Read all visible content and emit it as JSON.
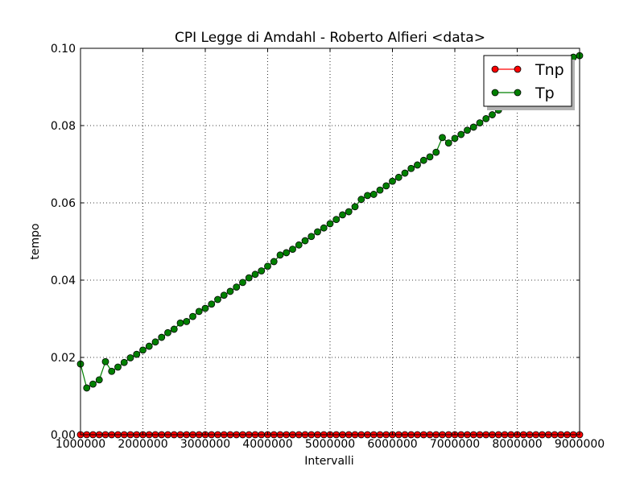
{
  "chart_data": {
    "type": "line",
    "title": "CPI  Legge di Amdahl  -   Roberto Alfieri  <data>",
    "xlabel": "Intervalli",
    "ylabel": "tempo",
    "xlim": [
      1000000,
      9000000
    ],
    "ylim": [
      0.0,
      0.1
    ],
    "x_ticks": [
      1000000,
      2000000,
      3000000,
      4000000,
      5000000,
      6000000,
      7000000,
      8000000,
      9000000
    ],
    "x_tick_labels": [
      "1000000",
      "2000000",
      "3000000",
      "4000000",
      "5000000",
      "6000000",
      "7000000",
      "8000000",
      "9000000"
    ],
    "y_ticks": [
      0.0,
      0.02,
      0.04,
      0.06,
      0.08,
      0.1
    ],
    "y_tick_labels": [
      "0.00",
      "0.02",
      "0.04",
      "0.06",
      "0.08",
      "0.10"
    ],
    "grid": true,
    "legend_position": "top-right",
    "x": [
      1000000,
      1100000,
      1200000,
      1300000,
      1400000,
      1500000,
      1600000,
      1700000,
      1800000,
      1900000,
      2000000,
      2100000,
      2200000,
      2300000,
      2400000,
      2500000,
      2600000,
      2700000,
      2800000,
      2900000,
      3000000,
      3100000,
      3200000,
      3300000,
      3400000,
      3500000,
      3600000,
      3700000,
      3800000,
      3900000,
      4000000,
      4100000,
      4200000,
      4300000,
      4400000,
      4500000,
      4600000,
      4700000,
      4800000,
      4900000,
      5000000,
      5100000,
      5200000,
      5300000,
      5400000,
      5500000,
      5600000,
      5700000,
      5800000,
      5900000,
      6000000,
      6100000,
      6200000,
      6300000,
      6400000,
      6500000,
      6600000,
      6700000,
      6800000,
      6900000,
      7000000,
      7100000,
      7200000,
      7300000,
      7400000,
      7500000,
      7600000,
      7700000,
      7800000,
      7900000,
      8000000,
      8100000,
      8200000,
      8300000,
      8400000,
      8500000,
      8600000,
      8700000,
      8800000,
      8900000,
      9000000
    ],
    "series": [
      {
        "name": "Tnp",
        "color": "#ff0000",
        "values": [
          0,
          0,
          0,
          0,
          0,
          0,
          0,
          0,
          0,
          0,
          0,
          0,
          0,
          0,
          0,
          0,
          0,
          0,
          0,
          0,
          0,
          0,
          0,
          0,
          0,
          0,
          0,
          0,
          0,
          0,
          0,
          0,
          0,
          0,
          0,
          0,
          0,
          0,
          0,
          0,
          0,
          0,
          0,
          0,
          0,
          0,
          0,
          0,
          0,
          0,
          0,
          0,
          0,
          0,
          0,
          0,
          0,
          0,
          0,
          0,
          0,
          0,
          0,
          0,
          0,
          0,
          0,
          0,
          0,
          0,
          0,
          0,
          0,
          0,
          0,
          0,
          0,
          0,
          0,
          0,
          0
        ]
      },
      {
        "name": "Tp",
        "color": "#008000",
        "values": [
          0.0183,
          0.0121,
          0.0131,
          0.0142,
          0.0189,
          0.0164,
          0.0175,
          0.0187,
          0.0199,
          0.0208,
          0.0219,
          0.0229,
          0.024,
          0.0252,
          0.0264,
          0.0273,
          0.0289,
          0.0293,
          0.0306,
          0.0319,
          0.0327,
          0.0338,
          0.035,
          0.0361,
          0.0371,
          0.0382,
          0.0394,
          0.0406,
          0.0415,
          0.0424,
          0.0436,
          0.0448,
          0.0465,
          0.0471,
          0.048,
          0.0491,
          0.0502,
          0.0513,
          0.0525,
          0.0535,
          0.0546,
          0.0557,
          0.0569,
          0.0577,
          0.059,
          0.0609,
          0.0619,
          0.0622,
          0.0633,
          0.0644,
          0.0656,
          0.0666,
          0.0677,
          0.0689,
          0.0698,
          0.071,
          0.0719,
          0.0731,
          0.0769,
          0.0755,
          0.0767,
          0.0777,
          0.0788,
          0.0796,
          0.0807,
          0.0818,
          0.0828,
          0.084,
          0.0849,
          0.0861,
          0.0871,
          0.0881,
          0.0892,
          0.0903,
          0.0913,
          0.0924,
          0.0934,
          0.0946,
          0.0956,
          0.0977,
          0.0981
        ]
      }
    ]
  }
}
